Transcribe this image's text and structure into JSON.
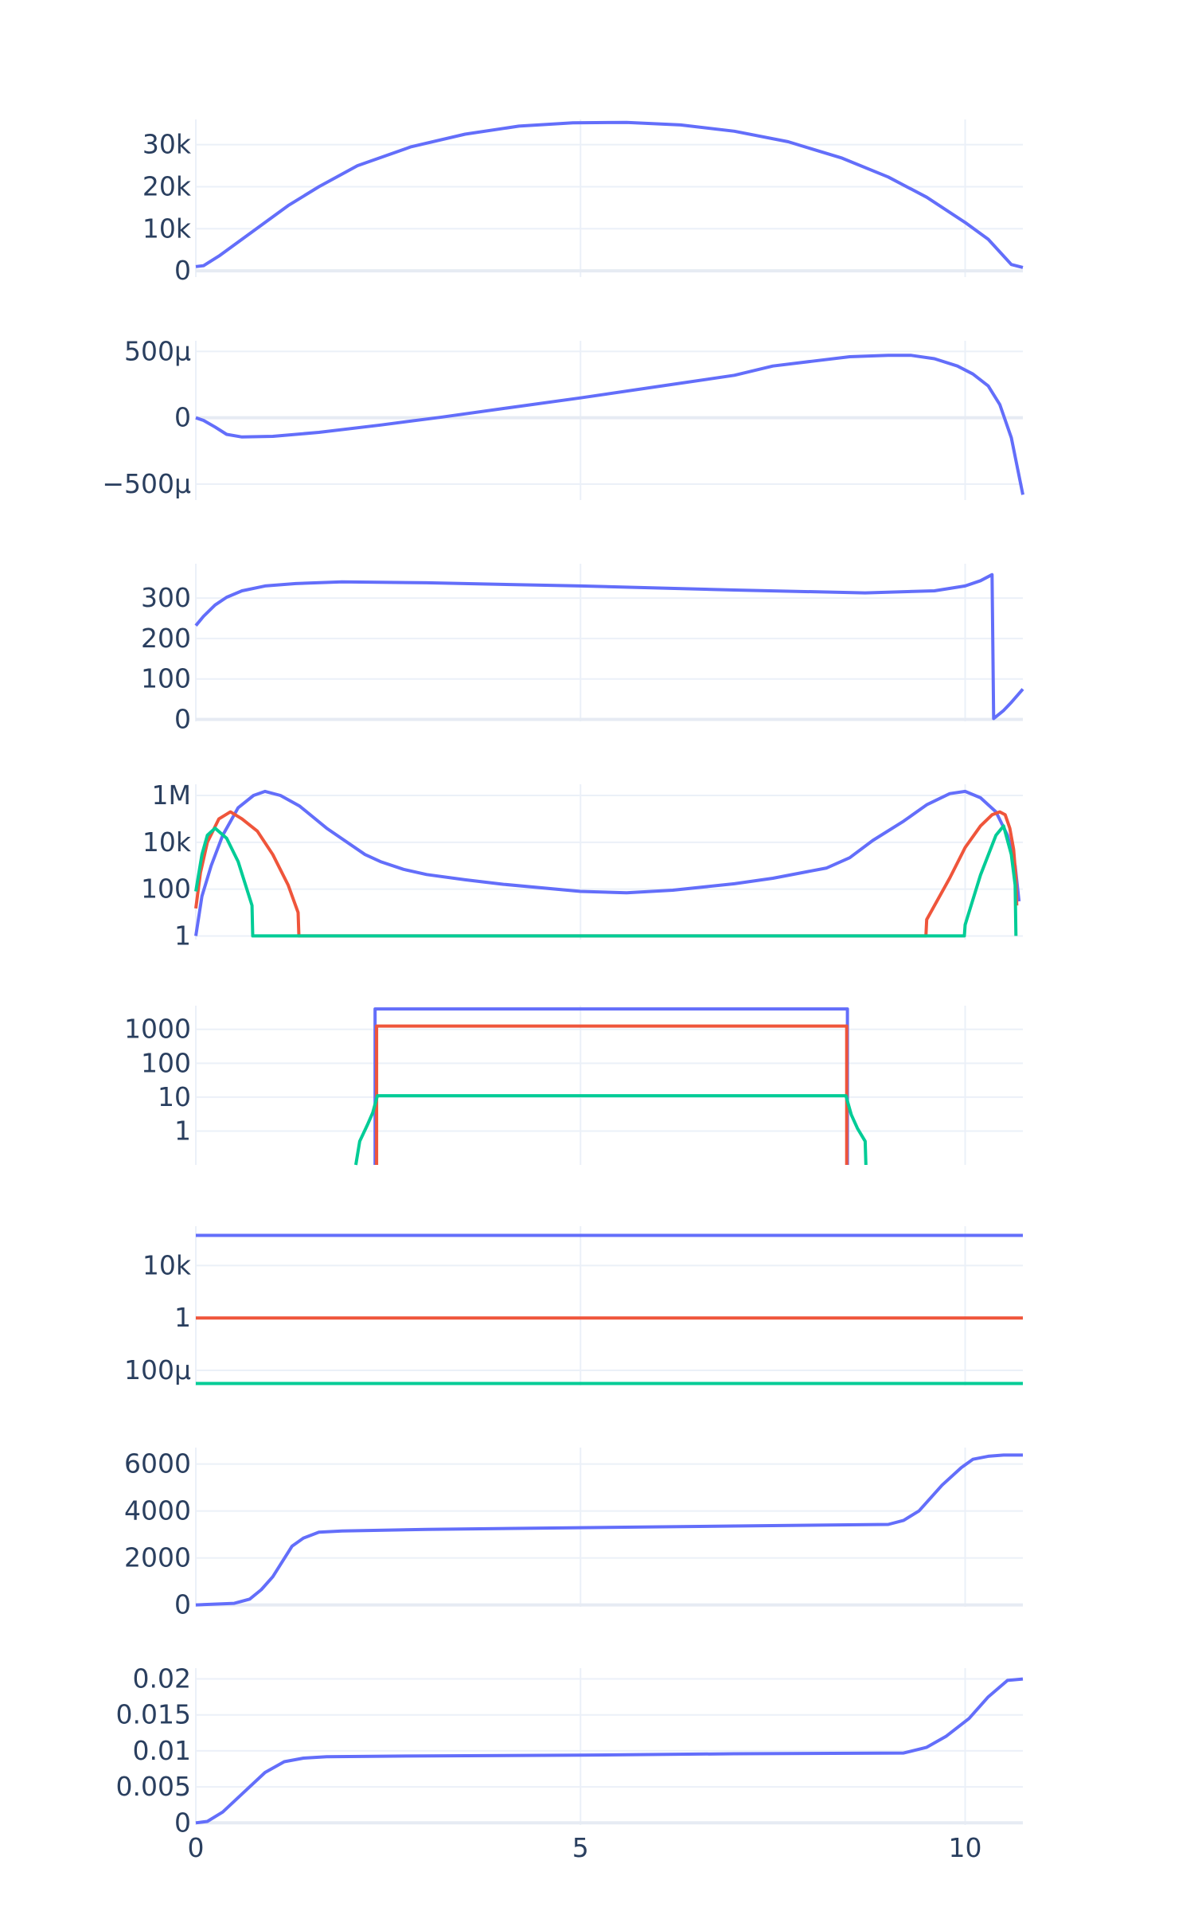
{
  "chart_data": [
    {
      "type": "line",
      "y_scale": "linear",
      "ylim": [
        -1500,
        36000
      ],
      "yticks": [
        0,
        10000,
        20000,
        30000
      ],
      "yticklabels": [
        "0",
        "10k",
        "20k",
        "30k"
      ],
      "series": [
        {
          "color": "#636efa",
          "x": [
            0,
            0.1,
            0.3,
            0.6,
            0.9,
            1.2,
            1.6,
            2.1,
            2.8,
            3.5,
            4.2,
            4.9,
            5.6,
            6.3,
            7.0,
            7.7,
            8.4,
            9.0,
            9.5,
            10.0,
            10.3,
            10.6,
            10.75
          ],
          "y": [
            1000,
            1200,
            3500,
            7500,
            11500,
            15500,
            20000,
            25000,
            29500,
            32500,
            34400,
            35200,
            35300,
            34700,
            33200,
            30700,
            26800,
            22300,
            17500,
            11500,
            7500,
            1500,
            800
          ]
        }
      ]
    },
    {
      "type": "line",
      "y_scale": "linear",
      "ylim": [
        -620,
        580
      ],
      "yticks": [
        -500,
        0,
        500
      ],
      "yticklabels": [
        "−500μ",
        "0",
        "500μ"
      ],
      "series": [
        {
          "color": "#636efa",
          "x": [
            0,
            0.1,
            0.25,
            0.4,
            0.6,
            1.0,
            1.6,
            2.4,
            3.2,
            4.0,
            5.0,
            6.0,
            7.0,
            7.5,
            8.0,
            8.5,
            9.0,
            9.3,
            9.6,
            9.9,
            10.1,
            10.3,
            10.45,
            10.6,
            10.75
          ],
          "y": [
            0,
            -20,
            -70,
            -125,
            -145,
            -140,
            -110,
            -55,
            5,
            70,
            150,
            235,
            320,
            390,
            425,
            460,
            470,
            470,
            445,
            390,
            330,
            240,
            100,
            -150,
            -580
          ]
        }
      ]
    },
    {
      "type": "line",
      "y_scale": "linear",
      "ylim": [
        -5,
        385
      ],
      "yticks": [
        0,
        100,
        200,
        300
      ],
      "yticklabels": [
        "0",
        "100",
        "200",
        "300"
      ],
      "series": [
        {
          "color": "#636efa",
          "x": [
            0,
            0.1,
            0.25,
            0.4,
            0.6,
            0.9,
            1.3,
            1.9,
            3.0,
            5.0,
            7.0,
            8.7,
            9.6,
            10.0,
            10.2,
            10.35,
            10.37,
            10.5,
            10.6,
            10.75
          ],
          "y": [
            232,
            255,
            283,
            302,
            318,
            330,
            336,
            340,
            338,
            330,
            320,
            313,
            318,
            330,
            343,
            358,
            2,
            22,
            42,
            75
          ]
        }
      ]
    },
    {
      "type": "line",
      "y_scale": "log",
      "ylim": [
        0.7,
        3000000
      ],
      "yticks": [
        1,
        100,
        10000,
        1000000
      ],
      "yticklabels": [
        "1",
        "100",
        "10k",
        "1M"
      ],
      "series": [
        {
          "color": "#636efa",
          "x": [
            0,
            0.08,
            0.2,
            0.35,
            0.55,
            0.75,
            0.9,
            1.1,
            1.35,
            1.7,
            2.2,
            2.4,
            2.7,
            3.0,
            3.5,
            4.0,
            5.0,
            5.6,
            6.2,
            7.0,
            7.5,
            8.2,
            8.5,
            8.8,
            9.2,
            9.5,
            9.8,
            10.0,
            10.2,
            10.4,
            10.55,
            10.65,
            10.7
          ],
          "y": [
            1,
            50,
            1000,
            20000,
            300000,
            1000000,
            1500000,
            1000000,
            350000,
            40000,
            3000,
            1500,
            700,
            420,
            250,
            160,
            80,
            70,
            90,
            170,
            290,
            800,
            2200,
            12000,
            80000,
            400000,
            1200000,
            1500000,
            800000,
            200000,
            20000,
            1000,
            30
          ]
        },
        {
          "color": "#ef553b",
          "x": [
            0,
            0.06,
            0.15,
            0.3,
            0.45,
            0.6,
            0.8,
            1.0,
            1.2,
            1.33,
            1.34,
            9.49,
            9.5,
            9.8,
            10.0,
            10.2,
            10.35,
            10.45,
            10.52,
            10.58,
            10.63,
            10.66,
            10.67
          ],
          "y": [
            15,
            500,
            10000,
            100000,
            200000,
            100000,
            30000,
            3000,
            150,
            10,
            1,
            1,
            5,
            300,
            6000,
            50000,
            150000,
            200000,
            150000,
            40000,
            5000,
            300,
            20
          ]
        },
        {
          "color": "#00cc96",
          "x": [
            0,
            0.08,
            0.15,
            0.25,
            0.4,
            0.55,
            0.73,
            0.74,
            9.99,
            10.0,
            10.2,
            10.4,
            10.5,
            10.6,
            10.65,
            10.66
          ],
          "y": [
            80,
            3000,
            20000,
            40000,
            15000,
            1500,
            20,
            1,
            1,
            3,
            400,
            20000,
            50000,
            3000,
            150,
            1
          ]
        }
      ]
    },
    {
      "type": "line",
      "y_scale": "log",
      "ylim": [
        0.1,
        5000
      ],
      "yticks": [
        1,
        10,
        100,
        1000
      ],
      "yticklabels": [
        "1",
        "10",
        "100",
        "1000"
      ],
      "series": [
        {
          "color": "#636efa",
          "x": [
            2.33,
            2.33,
            8.47,
            8.47
          ],
          "y": [
            0.1,
            4000,
            4000,
            0.1
          ]
        },
        {
          "color": "#ef553b",
          "x": [
            2.35,
            2.35,
            8.46,
            8.46
          ],
          "y": [
            0.1,
            1250,
            1250,
            0.1
          ]
        },
        {
          "color": "#00cc96",
          "x": [
            2.08,
            2.13,
            2.23,
            2.3,
            2.36,
            8.45,
            8.52,
            8.6,
            8.7,
            8.71
          ],
          "y": [
            0.1,
            0.5,
            1.5,
            3.5,
            11,
            11,
            3,
            1.2,
            0.5,
            0.1
          ]
        }
      ]
    },
    {
      "type": "line",
      "y_scale": "log",
      "ylim": [
        7e-06,
        10000000
      ],
      "yticks": [
        0.0001,
        1,
        10000
      ],
      "yticklabels": [
        "100μ",
        "1",
        "10k"
      ],
      "series": [
        {
          "color": "#636efa",
          "x": [
            0,
            10.75
          ],
          "y": [
            2000000,
            2000000
          ]
        },
        {
          "color": "#ef553b",
          "x": [
            0,
            10.75
          ],
          "y": [
            1,
            1
          ]
        },
        {
          "color": "#00cc96",
          "x": [
            0,
            10.75
          ],
          "y": [
            1e-05,
            1e-05
          ]
        }
      ]
    },
    {
      "type": "line",
      "y_scale": "linear",
      "ylim": [
        -80,
        6700
      ],
      "yticks": [
        0,
        2000,
        4000,
        6000
      ],
      "yticklabels": [
        "0",
        "2000",
        "4000",
        "6000"
      ],
      "series": [
        {
          "color": "#636efa",
          "x": [
            0,
            0.5,
            0.7,
            0.85,
            1.0,
            1.25,
            1.4,
            1.6,
            1.9,
            3.0,
            5.0,
            7.0,
            9.0,
            9.2,
            9.4,
            9.7,
            9.95,
            10.1,
            10.3,
            10.5,
            10.75
          ],
          "y": [
            0,
            70,
            250,
            650,
            1200,
            2500,
            2850,
            3100,
            3150,
            3220,
            3290,
            3360,
            3430,
            3600,
            4000,
            5100,
            5850,
            6200,
            6330,
            6380,
            6380
          ]
        }
      ]
    },
    {
      "type": "line",
      "y_scale": "linear",
      "ylim": [
        -0.0003,
        0.0215
      ],
      "yticks": [
        0,
        0.005,
        0.01,
        0.015,
        0.02
      ],
      "yticklabels": [
        "0",
        "0.005",
        "0.01",
        "0.015",
        "0.02"
      ],
      "xlim": [
        0,
        10.75
      ],
      "xticks": [
        0,
        5,
        10
      ],
      "xticklabels": [
        "0",
        "5",
        "10"
      ],
      "series": [
        {
          "color": "#636efa",
          "x": [
            0,
            0.15,
            0.35,
            0.6,
            0.9,
            1.15,
            1.4,
            1.7,
            3.0,
            5.0,
            7.0,
            9.2,
            9.5,
            9.75,
            10.05,
            10.3,
            10.55,
            10.75
          ],
          "y": [
            0,
            0.0002,
            0.0015,
            0.004,
            0.007,
            0.0085,
            0.009,
            0.0092,
            0.0093,
            0.0094,
            0.0096,
            0.0097,
            0.0105,
            0.012,
            0.0145,
            0.0175,
            0.0198,
            0.02
          ]
        }
      ]
    }
  ]
}
